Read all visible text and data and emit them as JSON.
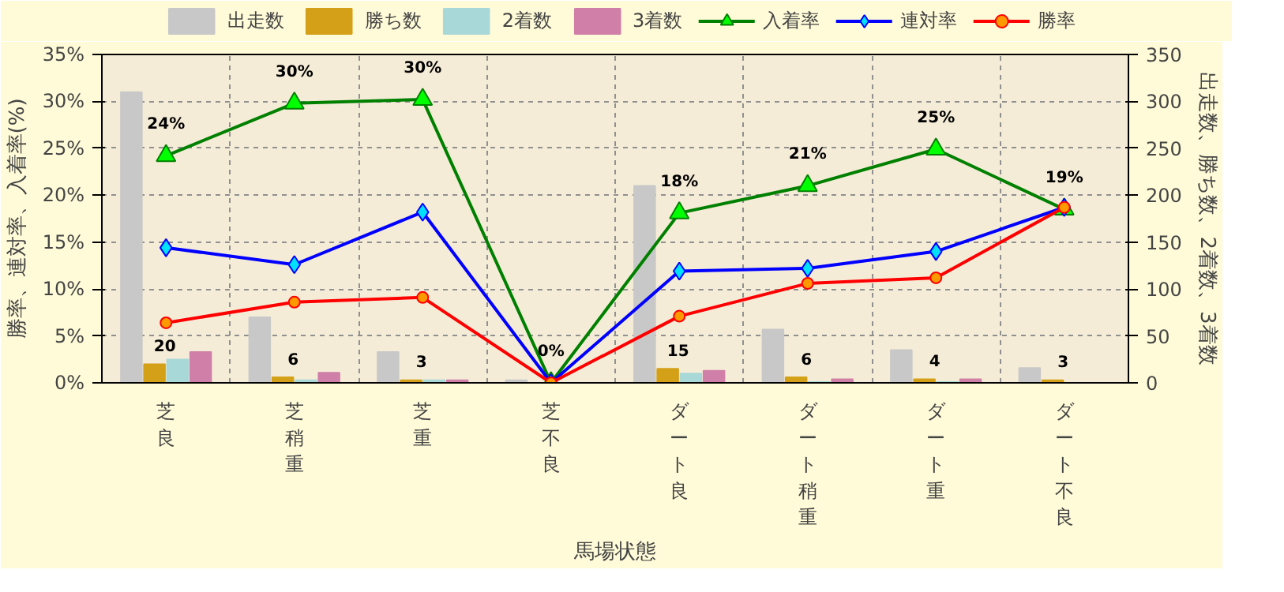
{
  "chart_data": {
    "type": "bar",
    "xlabel": "馬場状態",
    "ylabel": "勝率、連対率、入着率(%)",
    "y2label": "出走数、勝ち数、2着数、3着数",
    "categories": [
      "芝良",
      "芝稍重",
      "芝重",
      "芝不良",
      "ダート良",
      "ダート稍重",
      "ダート重",
      "ダート不良"
    ],
    "ylim": [
      0,
      35
    ],
    "yticks": [
      {
        "value": 0,
        "label": "0%"
      },
      {
        "value": 5,
        "label": "5%"
      },
      {
        "value": 10,
        "label": "10%"
      },
      {
        "value": 15,
        "label": "15%"
      },
      {
        "value": 20,
        "label": "20%"
      },
      {
        "value": 25,
        "label": "25%"
      },
      {
        "value": 30,
        "label": "30%"
      },
      {
        "value": 35,
        "label": "35%"
      }
    ],
    "y2lim": [
      0,
      350
    ],
    "y2ticks": [
      0,
      50,
      100,
      150,
      200,
      250,
      300,
      350
    ],
    "grid": true,
    "legend": "top",
    "series": [
      {
        "name": "出走数",
        "axis": "y2",
        "color": "#c8c8c8",
        "values": [
          310,
          70,
          33,
          3,
          210,
          57,
          35,
          16
        ]
      },
      {
        "name": "勝ち数",
        "axis": "y2",
        "color": "#d4a017",
        "values": [
          20,
          6,
          3,
          0,
          15,
          6,
          4,
          3
        ],
        "value_labels": [
          "20",
          "6",
          "3",
          null,
          "15",
          "6",
          "4",
          "3"
        ]
      },
      {
        "name": "2着数",
        "axis": "y2",
        "color": "#a8d8d8",
        "values": [
          25,
          3,
          3,
          0,
          10,
          1,
          1,
          0
        ]
      },
      {
        "name": "3着数",
        "axis": "y2",
        "color": "#d080a8",
        "values": [
          33,
          11,
          3,
          0,
          13,
          4,
          4,
          0
        ]
      },
      {
        "name": "入着率",
        "type": "line",
        "color": "#008000",
        "marker": "triangle",
        "values": [
          24.2,
          29.8,
          30.2,
          0,
          18.1,
          21.0,
          24.9,
          18.5
        ],
        "value_labels": [
          "24%",
          "30%",
          "30%",
          "0%",
          "18%",
          "21%",
          "25%",
          "19%"
        ]
      },
      {
        "name": "連対率",
        "type": "line",
        "color": "#0000ff",
        "marker": "diamond",
        "values": [
          14.4,
          12.6,
          18.2,
          0,
          11.9,
          12.2,
          14.0,
          18.7
        ]
      },
      {
        "name": "勝率",
        "type": "line",
        "color": "#ff0000",
        "marker": "circle",
        "values": [
          6.4,
          8.6,
          9.1,
          0,
          7.1,
          10.6,
          11.2,
          18.7
        ]
      }
    ]
  }
}
